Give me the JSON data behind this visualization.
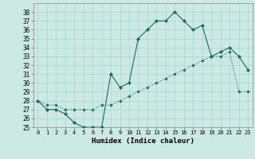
{
  "xlabel": "Humidex (Indice chaleur)",
  "xlim": [
    -0.5,
    23.5
  ],
  "ylim": [
    25,
    39
  ],
  "xticks": [
    0,
    1,
    2,
    3,
    4,
    5,
    6,
    7,
    8,
    9,
    10,
    11,
    12,
    13,
    14,
    15,
    16,
    17,
    18,
    19,
    20,
    21,
    22,
    23
  ],
  "yticks": [
    25,
    26,
    27,
    28,
    29,
    30,
    31,
    32,
    33,
    34,
    35,
    36,
    37,
    38
  ],
  "bg_color": "#cce9e4",
  "grid_color": "#a8d5cc",
  "line_color": "#1a6b5a",
  "line1_x": [
    0,
    1,
    2,
    3,
    4,
    5,
    6,
    7,
    8,
    9,
    10,
    11,
    12,
    13,
    14,
    15,
    16,
    17,
    18,
    19,
    20,
    21,
    22,
    23
  ],
  "line1_y": [
    28,
    27,
    27,
    26.5,
    25.5,
    25,
    25,
    25,
    31,
    29.5,
    30,
    35,
    36,
    37,
    37,
    38,
    37,
    36,
    36.5,
    33,
    33.5,
    34,
    33,
    31.5
  ],
  "line2_x": [
    0,
    1,
    2,
    3,
    4,
    5,
    6,
    7,
    8,
    9,
    10,
    11,
    12,
    13,
    14,
    15,
    16,
    17,
    18,
    19,
    20,
    21,
    22,
    23
  ],
  "line2_y": [
    28,
    27.5,
    27.5,
    27,
    27,
    27,
    27,
    27.5,
    27.5,
    28,
    28.5,
    29,
    29.5,
    30,
    30.5,
    31,
    31.5,
    32,
    32.5,
    33,
    33,
    33.5,
    29,
    29
  ]
}
